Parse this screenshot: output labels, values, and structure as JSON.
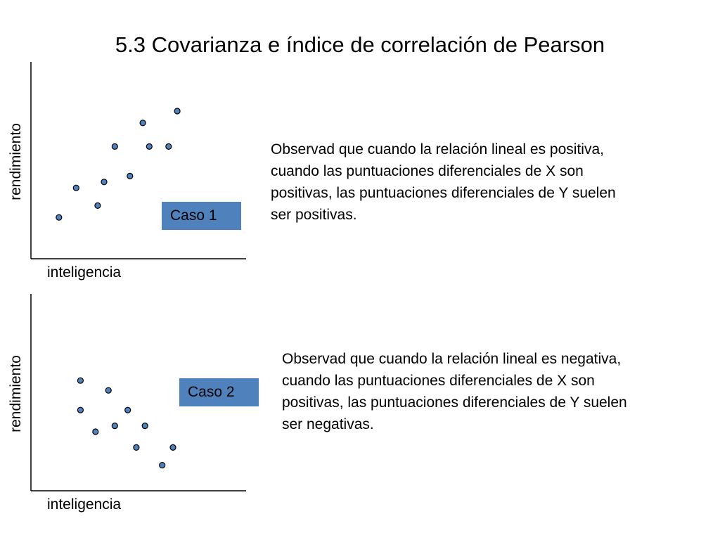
{
  "title": "5.3 Covarianza e índice de correlación de Pearson",
  "colors": {
    "point_fill": "#4f81bd",
    "point_stroke": "#000000",
    "caso_box": "#4f81bd",
    "axis": "#000000"
  },
  "chart_data": [
    {
      "type": "scatter",
      "title": "",
      "xlabel": "inteligencia",
      "ylabel": "rendimiento",
      "xlim": [
        0,
        10
      ],
      "ylim": [
        0,
        10
      ],
      "grid": false,
      "legend": "none",
      "points": [
        {
          "x": 1.3,
          "y": 2.1
        },
        {
          "x": 2.1,
          "y": 3.6
        },
        {
          "x": 3.1,
          "y": 2.7
        },
        {
          "x": 3.4,
          "y": 3.9
        },
        {
          "x": 3.9,
          "y": 5.7
        },
        {
          "x": 4.6,
          "y": 4.2
        },
        {
          "x": 5.2,
          "y": 6.9
        },
        {
          "x": 5.5,
          "y": 5.7
        },
        {
          "x": 6.4,
          "y": 5.7
        },
        {
          "x": 6.8,
          "y": 7.5
        }
      ]
    },
    {
      "type": "scatter",
      "title": "",
      "xlabel": "inteligencia",
      "ylabel": "rendimiento",
      "xlim": [
        0,
        10
      ],
      "ylim": [
        0,
        10
      ],
      "grid": false,
      "legend": "none",
      "points": [
        {
          "x": 2.3,
          "y": 5.6
        },
        {
          "x": 2.3,
          "y": 4.1
        },
        {
          "x": 3.0,
          "y": 3.0
        },
        {
          "x": 3.6,
          "y": 5.1
        },
        {
          "x": 3.9,
          "y": 3.3
        },
        {
          "x": 4.5,
          "y": 4.1
        },
        {
          "x": 4.9,
          "y": 2.2
        },
        {
          "x": 5.3,
          "y": 3.3
        },
        {
          "x": 6.1,
          "y": 1.3
        },
        {
          "x": 6.6,
          "y": 2.2
        }
      ]
    }
  ],
  "panels": [
    {
      "caso_label": "Caso 1",
      "note_lines": [
        "Observad que cuando la relación lineal es positiva,",
        "cuando las puntuaciones diferenciales de X son",
        "positivas, las puntuaciones diferenciales de Y suelen",
        "ser positivas."
      ]
    },
    {
      "caso_label": "Caso 2",
      "note_lines": [
        "Observad que cuando la relación lineal es negativa,",
        "cuando las puntuaciones diferenciales de X son",
        "positivas, las puntuaciones diferenciales de Y suelen",
        "ser negativas."
      ]
    }
  ]
}
